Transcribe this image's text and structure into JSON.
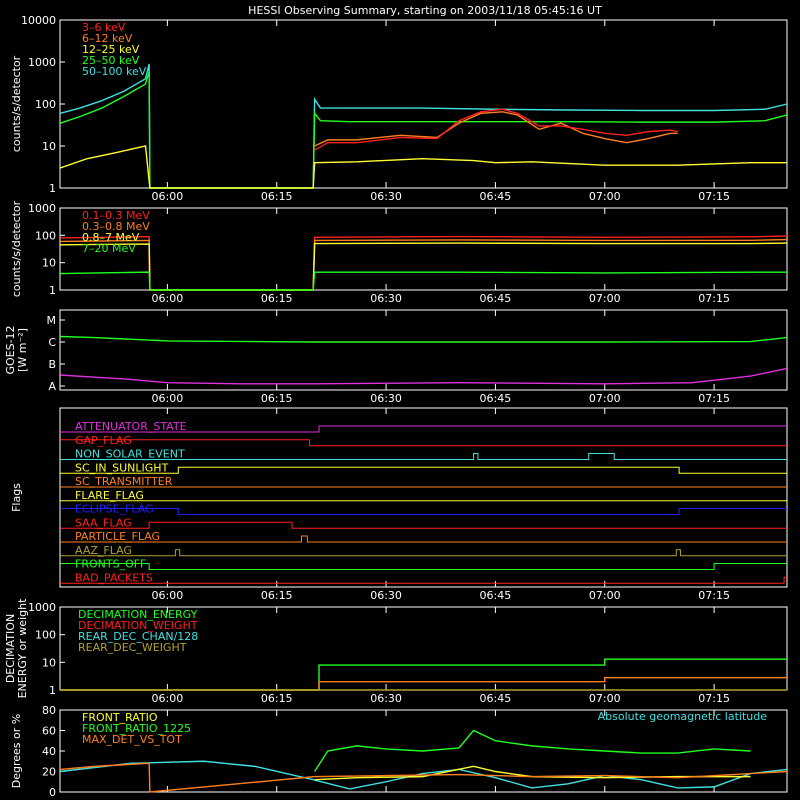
{
  "title": "HESSI Observing Summary, starting on 2003/11/18 05:45:16 UT",
  "time_ticks": [
    "06:00",
    "06:15",
    "06:30",
    "06:45",
    "07:00",
    "07:15"
  ],
  "time_tick_minutes": [
    360,
    375,
    390,
    405,
    420,
    435
  ],
  "time_range_minutes": [
    345.27,
    445.0
  ],
  "colors": {
    "axis": "#ffffff",
    "red": "#ff2020",
    "orange": "#ff7f1f",
    "yellow": "#ffff30",
    "green": "#20ff20",
    "cyan": "#40e0e0",
    "magenta": "#e030e0",
    "blue": "#2020ff",
    "olive": "#b0a030"
  },
  "chart_data": [
    {
      "type": "line",
      "id": "xray",
      "ylabel": "counts/s/detector",
      "yscale": "log",
      "ylim": [
        1,
        10000
      ],
      "yticks": [
        "1",
        "10",
        "100",
        "1000",
        "10000"
      ],
      "legend": [
        "3–6 keV",
        "6–12 keV",
        "12–25 keV",
        "25–50 keV",
        "50–100 keV"
      ],
      "legend_colors": [
        "red",
        "orange",
        "yellow",
        "green",
        "cyan"
      ],
      "series": [
        {
          "name": "50–100 keV",
          "color": "cyan",
          "x": [
            345.3,
            348,
            351,
            354,
            357,
            357.5,
            357.6,
            370,
            380,
            380.2,
            381,
            385,
            395,
            405,
            415,
            425,
            435,
            442,
            445
          ],
          "y": [
            60,
            80,
            120,
            200,
            400,
            900,
            1,
            1,
            1,
            130,
            80,
            80,
            80,
            75,
            72,
            70,
            70,
            75,
            100
          ]
        },
        {
          "name": "25–50 keV",
          "color": "green",
          "x": [
            345.3,
            348,
            351,
            354,
            357,
            357.5,
            357.6,
            370,
            380,
            380.2,
            381,
            385,
            395,
            405,
            415,
            425,
            435,
            442,
            445
          ],
          "y": [
            35,
            50,
            80,
            150,
            300,
            600,
            1,
            1,
            1,
            60,
            40,
            38,
            38,
            38,
            38,
            37,
            37,
            40,
            55
          ]
        },
        {
          "name": "12–25 keV",
          "color": "yellow",
          "x": [
            345.3,
            349,
            353,
            357,
            357.6,
            380,
            380.2,
            386,
            395,
            402,
            405,
            410,
            420,
            430,
            440,
            445
          ],
          "y": [
            3,
            5,
            7,
            10,
            1,
            1,
            4,
            4.2,
            5,
            4.5,
            4,
            4.2,
            3.5,
            3.5,
            4,
            4
          ]
        },
        {
          "name": "6–12 keV",
          "color": "orange",
          "x": [
            380.2,
            382,
            386,
            392,
            397,
            400,
            403,
            406,
            408,
            411,
            414,
            417,
            420,
            423,
            426,
            429,
            430
          ],
          "y": [
            10,
            14,
            14,
            18,
            16,
            35,
            60,
            65,
            55,
            25,
            35,
            20,
            15,
            12,
            15,
            20,
            20
          ]
        },
        {
          "name": "3–6 keV",
          "color": "red",
          "x": [
            380.2,
            382,
            386,
            392,
            397,
            400,
            403,
            406,
            408,
            411,
            414,
            417,
            420,
            423,
            426,
            429,
            430
          ],
          "y": [
            8,
            12,
            12,
            16,
            15,
            40,
            65,
            75,
            60,
            30,
            30,
            25,
            20,
            18,
            22,
            24,
            22
          ]
        }
      ]
    },
    {
      "type": "line",
      "id": "gamma",
      "ylabel": "counts/s/detector",
      "yscale": "log",
      "ylim": [
        1,
        1000
      ],
      "yticks": [
        "1",
        "10",
        "100",
        "1000"
      ],
      "legend": [
        "0.1–0.3 MeV",
        "0.3–0.8 MeV",
        "0.8–7 MeV",
        "7–20 MeV"
      ],
      "legend_colors": [
        "red",
        "orange",
        "yellow",
        "green"
      ],
      "series": [
        {
          "name": "0.1–0.3 MeV",
          "color": "red",
          "x": [
            345.3,
            357.5,
            357.6,
            380,
            380.2,
            400,
            420,
            440,
            445
          ],
          "y": [
            80,
            90,
            1,
            1,
            85,
            90,
            85,
            88,
            95
          ]
        },
        {
          "name": "0.3–0.8 MeV",
          "color": "orange",
          "x": [
            345.3,
            357.5,
            357.6,
            380,
            380.2,
            400,
            420,
            440,
            445
          ],
          "y": [
            60,
            65,
            1,
            1,
            65,
            68,
            65,
            66,
            70
          ]
        },
        {
          "name": "0.8–7 MeV",
          "color": "yellow",
          "x": [
            345.3,
            357.5,
            357.6,
            380,
            380.2,
            400,
            420,
            440,
            445
          ],
          "y": [
            45,
            48,
            1,
            1,
            50,
            52,
            50,
            50,
            52
          ]
        },
        {
          "name": "7–20 MeV",
          "color": "green",
          "x": [
            345.3,
            357.5,
            357.6,
            380,
            380.2,
            400,
            420,
            440,
            445
          ],
          "y": [
            4,
            4.5,
            1,
            1,
            4.5,
            4.5,
            4.2,
            4.5,
            4.5
          ]
        }
      ]
    },
    {
      "type": "line",
      "id": "goes",
      "ylabel": "GOES-12",
      "ylabel2": "[W m⁻²]",
      "yticks": [
        "A",
        "B",
        "C",
        "M"
      ],
      "series": [
        {
          "name": "long",
          "color": "green",
          "x": [
            345.3,
            350,
            360,
            380,
            400,
            420,
            440,
            445
          ],
          "y": [
            2.25,
            2.2,
            2.05,
            2.0,
            2.0,
            2.0,
            2.02,
            2.2
          ]
        },
        {
          "name": "short",
          "color": "magenta",
          "x": [
            345.3,
            350,
            355,
            360,
            370,
            380,
            400,
            420,
            432,
            440,
            445
          ],
          "y": [
            0.5,
            0.4,
            0.3,
            0.15,
            0.1,
            0.1,
            0.15,
            0.1,
            0.15,
            0.45,
            0.8
          ]
        }
      ]
    },
    {
      "type": "step",
      "id": "flags",
      "ylabel": "Flags",
      "rows": [
        {
          "label": "ATTENUATOR_STATE",
          "color": "magenta",
          "segs": [
            [
              345.3,
              0
            ],
            [
              380.8,
              1
            ]
          ]
        },
        {
          "label": "GAP_FLAG",
          "color": "red",
          "segs": [
            [
              345.3,
              1
            ],
            [
              379.5,
              0
            ]
          ]
        },
        {
          "label": "NON_SOLAR_EVENT",
          "color": "cyan",
          "segs": [
            [
              345.3,
              0
            ],
            [
              402,
              1
            ],
            [
              402.6,
              0
            ],
            [
              417.8,
              1
            ],
            [
              421.3,
              0
            ]
          ]
        },
        {
          "label": "SC_IN_SUNLIGHT",
          "color": "yellow",
          "segs": [
            [
              345.3,
              0
            ],
            [
              361.5,
              1
            ],
            [
              430.2,
              0
            ]
          ]
        },
        {
          "label": "SC_TRANSMITTER",
          "color": "orange",
          "segs": [
            [
              345.3,
              0
            ]
          ]
        },
        {
          "label": "FLARE_FLAG",
          "color": "yellow",
          "segs": [
            [
              345.3,
              0
            ]
          ]
        },
        {
          "label": "ECLIPSE_FLAG",
          "color": "blue",
          "segs": [
            [
              345.3,
              1
            ],
            [
              361.5,
              0
            ],
            [
              430.2,
              1
            ]
          ]
        },
        {
          "label": "SAA_FLAG",
          "color": "red",
          "segs": [
            [
              345.3,
              0
            ],
            [
              357.5,
              1
            ],
            [
              377.1,
              0
            ]
          ]
        },
        {
          "label": "PARTICLE_FLAG",
          "color": "orange",
          "segs": [
            [
              345.3,
              0
            ],
            [
              378.4,
              1
            ],
            [
              379.2,
              0
            ]
          ]
        },
        {
          "label": "AAZ_FLAG",
          "color": "olive",
          "segs": [
            [
              345.3,
              0
            ],
            [
              361.1,
              1
            ],
            [
              361.7,
              0
            ],
            [
              429.8,
              1
            ],
            [
              430.4,
              0
            ]
          ]
        },
        {
          "label": "FRONTS_OFF",
          "color": "green",
          "segs": [
            [
              345.3,
              1
            ],
            [
              357.5,
              0
            ],
            [
              435.0,
              1
            ]
          ]
        },
        {
          "label": "BAD_PACKETS",
          "color": "red",
          "segs": [
            [
              345.3,
              0
            ],
            [
              444.6,
              1
            ]
          ]
        }
      ]
    },
    {
      "type": "step",
      "id": "decimation",
      "ylabel": "DECIMATION",
      "ylabel2": "ENERGY or weight",
      "yscale": "log",
      "ylim": [
        1,
        1000
      ],
      "yticks": [
        "1",
        "10",
        "100",
        "1000"
      ],
      "legend": [
        "DECIMATION_ENERGY",
        "DECIMATION_WEIGHT",
        "REAR_DEC_CHAN/128",
        "REAR_DEC_WEIGHT"
      ],
      "legend_colors": [
        "green",
        "red",
        "cyan",
        "olive"
      ],
      "series": [
        {
          "name": "DECIMATION_ENERGY",
          "color": "green",
          "x": [
            345.3,
            380.8,
            420,
            445
          ],
          "y": [
            1,
            8,
            13,
            13
          ]
        },
        {
          "name": "DECIMATION_WEIGHT",
          "color": "orange",
          "x": [
            345.3,
            380.8,
            420,
            445
          ],
          "y": [
            1,
            2,
            2.8,
            2.8
          ]
        },
        {
          "name": "REAR_DEC_WEIGHT",
          "color": "olive",
          "x": [
            345.3,
            445
          ],
          "y": [
            1,
            1
          ]
        }
      ]
    },
    {
      "type": "line",
      "id": "ratio",
      "ylabel": "Degrees or %",
      "ylim": [
        0,
        80
      ],
      "yticks": [
        "0",
        "20",
        "40",
        "60",
        "80"
      ],
      "legend": [
        "FRONT_RATIO",
        "FRONT_RATIO_1225",
        "MAX_DET_VS_TOT"
      ],
      "legend_colors": [
        "yellow",
        "green",
        "orange"
      ],
      "annotation": "Absolute geomagnetic latitude",
      "series": [
        {
          "name": "Absolute geomagnetic latitude",
          "color": "cyan",
          "x": [
            345.3,
            355,
            365,
            372,
            380,
            385,
            390,
            395,
            400,
            405,
            410,
            415,
            420,
            425,
            430,
            435,
            440,
            445
          ],
          "y": [
            20,
            28,
            30,
            25,
            12,
            3,
            10,
            18,
            22,
            14,
            4,
            8,
            16,
            12,
            4,
            5,
            18,
            22
          ]
        },
        {
          "name": "FRONT_RATIO_1225",
          "color": "green",
          "x": [
            380.2,
            382,
            386,
            390,
            395,
            400,
            402,
            405,
            410,
            415,
            420,
            425,
            430,
            435,
            440
          ],
          "y": [
            20,
            40,
            45,
            42,
            40,
            43,
            60,
            50,
            45,
            42,
            40,
            38,
            38,
            42,
            40
          ]
        },
        {
          "name": "FRONT_RATIO",
          "color": "yellow",
          "x": [
            380.2,
            386,
            395,
            402,
            405,
            410,
            420,
            430,
            440
          ],
          "y": [
            12,
            14,
            15,
            25,
            20,
            15,
            14,
            15,
            15
          ]
        },
        {
          "name": "MAX_DET_VS_TOT",
          "color": "orange",
          "x": [
            345.3,
            350,
            357.5,
            357.6,
            380.2,
            390,
            400,
            410,
            420,
            430,
            440,
            445
          ],
          "y": [
            22,
            25,
            28,
            0,
            15,
            16,
            17,
            15,
            16,
            14,
            18,
            20
          ]
        }
      ]
    }
  ]
}
